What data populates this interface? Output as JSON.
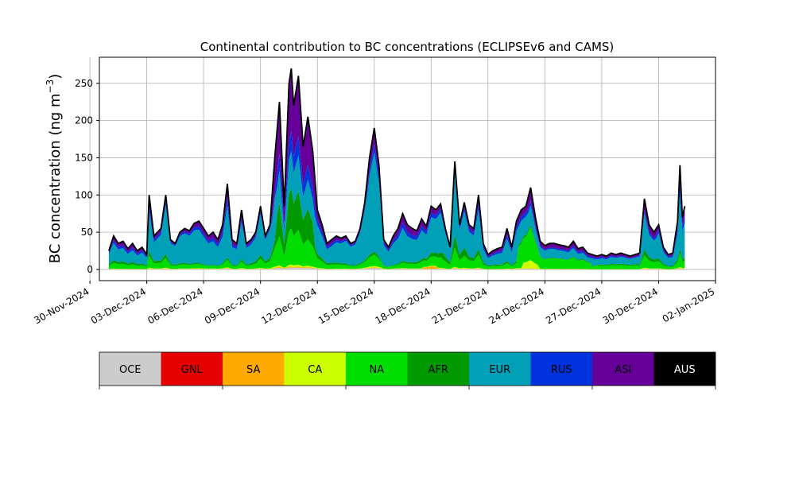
{
  "chart_data": {
    "type": "area",
    "title": "Continental contribution to BC concentrations (ECLIPSEv6 and CAMS)",
    "xlabel": "",
    "ylabel": "BC concentration (ng m",
    "ylabel_superscript": "−3",
    "ylabel_suffix": ")",
    "grid": true,
    "x_type": "date",
    "x_start": "2024-12-01",
    "xlim": [
      "2024-11-30T12:00",
      "2025-01-02T00:00"
    ],
    "ylim": [
      -15,
      285
    ],
    "x_ticks": [
      "2024-11-30",
      "2024-12-03",
      "2024-12-06",
      "2024-12-09",
      "2024-12-12",
      "2024-12-15",
      "2024-12-18",
      "2024-12-21",
      "2024-12-24",
      "2024-12-27",
      "2024-12-30",
      "2025-01-02"
    ],
    "x_tick_labels": [
      "30-Nov-2024",
      "03-Dec-2024",
      "06-Dec-2024",
      "09-Dec-2024",
      "12-Dec-2024",
      "15-Dec-2024",
      "18-Dec-2024",
      "21-Dec-2024",
      "24-Dec-2024",
      "27-Dec-2024",
      "30-Dec-2024",
      "02-Jan-2025"
    ],
    "y_ticks": [
      0,
      50,
      100,
      150,
      200,
      250
    ],
    "y_tick_labels": [
      "0",
      "50",
      "100",
      "150",
      "200",
      "250"
    ],
    "total_points": [
      [
        "2024-12-01T00:00",
        25
      ],
      [
        "2024-12-01T06:00",
        45
      ],
      [
        "2024-12-01T12:00",
        35
      ],
      [
        "2024-12-01T18:00",
        38
      ],
      [
        "2024-12-02T00:00",
        28
      ],
      [
        "2024-12-02T06:00",
        35
      ],
      [
        "2024-12-02T12:00",
        25
      ],
      [
        "2024-12-02T18:00",
        30
      ],
      [
        "2024-12-03T00:00",
        20
      ],
      [
        "2024-12-03T03:00",
        100
      ],
      [
        "2024-12-03T09:00",
        45
      ],
      [
        "2024-12-03T18:00",
        55
      ],
      [
        "2024-12-04T00:00",
        100
      ],
      [
        "2024-12-04T06:00",
        40
      ],
      [
        "2024-12-04T12:00",
        35
      ],
      [
        "2024-12-04T18:00",
        50
      ],
      [
        "2024-12-05T00:00",
        55
      ],
      [
        "2024-12-05T06:00",
        52
      ],
      [
        "2024-12-05T12:00",
        62
      ],
      [
        "2024-12-05T18:00",
        65
      ],
      [
        "2024-12-06T00:00",
        55
      ],
      [
        "2024-12-06T06:00",
        45
      ],
      [
        "2024-12-06T12:00",
        50
      ],
      [
        "2024-12-06T18:00",
        40
      ],
      [
        "2024-12-07T00:00",
        60
      ],
      [
        "2024-12-07T06:00",
        115
      ],
      [
        "2024-12-07T12:00",
        40
      ],
      [
        "2024-12-07T18:00",
        35
      ],
      [
        "2024-12-08T00:00",
        80
      ],
      [
        "2024-12-08T06:00",
        35
      ],
      [
        "2024-12-08T12:00",
        40
      ],
      [
        "2024-12-08T18:00",
        50
      ],
      [
        "2024-12-09T00:00",
        85
      ],
      [
        "2024-12-09T06:00",
        45
      ],
      [
        "2024-12-09T12:00",
        60
      ],
      [
        "2024-12-09T18:00",
        150
      ],
      [
        "2024-12-10T00:00",
        225
      ],
      [
        "2024-12-10T06:00",
        85
      ],
      [
        "2024-12-10T12:00",
        250
      ],
      [
        "2024-12-10T15:00",
        270
      ],
      [
        "2024-12-10T18:00",
        220
      ],
      [
        "2024-12-11T00:00",
        260
      ],
      [
        "2024-12-11T06:00",
        165
      ],
      [
        "2024-12-11T12:00",
        205
      ],
      [
        "2024-12-11T18:00",
        160
      ],
      [
        "2024-12-12T00:00",
        80
      ],
      [
        "2024-12-12T06:00",
        60
      ],
      [
        "2024-12-12T12:00",
        35
      ],
      [
        "2024-12-12T18:00",
        40
      ],
      [
        "2024-12-13T00:00",
        45
      ],
      [
        "2024-12-13T06:00",
        42
      ],
      [
        "2024-12-13T12:00",
        45
      ],
      [
        "2024-12-13T18:00",
        35
      ],
      [
        "2024-12-14T00:00",
        38
      ],
      [
        "2024-12-14T06:00",
        55
      ],
      [
        "2024-12-14T12:00",
        90
      ],
      [
        "2024-12-14T18:00",
        150
      ],
      [
        "2024-12-15T00:00",
        190
      ],
      [
        "2024-12-15T06:00",
        140
      ],
      [
        "2024-12-15T12:00",
        40
      ],
      [
        "2024-12-15T18:00",
        30
      ],
      [
        "2024-12-16T00:00",
        45
      ],
      [
        "2024-12-16T06:00",
        55
      ],
      [
        "2024-12-16T12:00",
        75
      ],
      [
        "2024-12-16T18:00",
        60
      ],
      [
        "2024-12-17T00:00",
        55
      ],
      [
        "2024-12-17T06:00",
        52
      ],
      [
        "2024-12-17T12:00",
        68
      ],
      [
        "2024-12-17T18:00",
        58
      ],
      [
        "2024-12-18T00:00",
        85
      ],
      [
        "2024-12-18T06:00",
        80
      ],
      [
        "2024-12-18T12:00",
        88
      ],
      [
        "2024-12-18T18:00",
        55
      ],
      [
        "2024-12-19T00:00",
        30
      ],
      [
        "2024-12-19T06:00",
        145
      ],
      [
        "2024-12-19T12:00",
        60
      ],
      [
        "2024-12-19T18:00",
        90
      ],
      [
        "2024-12-20T00:00",
        60
      ],
      [
        "2024-12-20T06:00",
        55
      ],
      [
        "2024-12-20T12:00",
        100
      ],
      [
        "2024-12-20T18:00",
        35
      ],
      [
        "2024-12-21T00:00",
        20
      ],
      [
        "2024-12-21T06:00",
        25
      ],
      [
        "2024-12-21T12:00",
        28
      ],
      [
        "2024-12-21T18:00",
        30
      ],
      [
        "2024-12-22T00:00",
        55
      ],
      [
        "2024-12-22T06:00",
        30
      ],
      [
        "2024-12-22T12:00",
        65
      ],
      [
        "2024-12-22T18:00",
        80
      ],
      [
        "2024-12-23T00:00",
        85
      ],
      [
        "2024-12-23T06:00",
        110
      ],
      [
        "2024-12-23T12:00",
        70
      ],
      [
        "2024-12-23T18:00",
        38
      ],
      [
        "2024-12-24T00:00",
        32
      ],
      [
        "2024-12-24T06:00",
        35
      ],
      [
        "2024-12-24T12:00",
        35
      ],
      [
        "2024-12-24T18:00",
        33
      ],
      [
        "2024-12-25T00:00",
        32
      ],
      [
        "2024-12-25T06:00",
        30
      ],
      [
        "2024-12-25T12:00",
        38
      ],
      [
        "2024-12-25T18:00",
        28
      ],
      [
        "2024-12-26T00:00",
        30
      ],
      [
        "2024-12-26T06:00",
        22
      ],
      [
        "2024-12-26T12:00",
        20
      ],
      [
        "2024-12-26T18:00",
        18
      ],
      [
        "2024-12-27T00:00",
        20
      ],
      [
        "2024-12-27T06:00",
        18
      ],
      [
        "2024-12-27T12:00",
        22
      ],
      [
        "2024-12-27T18:00",
        20
      ],
      [
        "2024-12-28T00:00",
        22
      ],
      [
        "2024-12-28T06:00",
        20
      ],
      [
        "2024-12-28T12:00",
        18
      ],
      [
        "2024-12-28T18:00",
        20
      ],
      [
        "2024-12-29T00:00",
        22
      ],
      [
        "2024-12-29T06:00",
        95
      ],
      [
        "2024-12-29T12:00",
        60
      ],
      [
        "2024-12-29T18:00",
        50
      ],
      [
        "2024-12-30T00:00",
        60
      ],
      [
        "2024-12-30T06:00",
        30
      ],
      [
        "2024-12-30T12:00",
        20
      ],
      [
        "2024-12-30T18:00",
        22
      ],
      [
        "2024-12-31T00:00",
        65
      ],
      [
        "2024-12-31T03:00",
        140
      ],
      [
        "2024-12-31T06:00",
        70
      ],
      [
        "2024-12-31T09:00",
        85
      ]
    ],
    "stack_order": [
      "OCE",
      "GNL",
      "SA",
      "CA",
      "NA",
      "AFR",
      "EUR",
      "RUS",
      "ASI",
      "AUS"
    ],
    "series": [
      {
        "name": "OCE",
        "color": "#cccccc"
      },
      {
        "name": "GNL",
        "color": "#e60000"
      },
      {
        "name": "SA",
        "color": "#ffaa00"
      },
      {
        "name": "CA",
        "color": "#ccff00"
      },
      {
        "name": "NA",
        "color": "#00dd00"
      },
      {
        "name": "AFR",
        "color": "#009900"
      },
      {
        "name": "EUR",
        "color": "#00a0b8"
      },
      {
        "name": "RUS",
        "color": "#0033dd"
      },
      {
        "name": "ASI",
        "color": "#660099"
      },
      {
        "name": "AUS",
        "color": "#000000"
      }
    ],
    "legend_placement": "below",
    "legend_items": [
      {
        "label": "OCE",
        "color": "#cccccc",
        "text_color": "#000000"
      },
      {
        "label": "GNL",
        "color": "#e60000",
        "text_color": "#000000"
      },
      {
        "label": "SA",
        "color": "#ffaa00",
        "text_color": "#000000"
      },
      {
        "label": "CA",
        "color": "#ccff00",
        "text_color": "#000000"
      },
      {
        "label": "NA",
        "color": "#00dd00",
        "text_color": "#000000"
      },
      {
        "label": "AFR",
        "color": "#009900",
        "text_color": "#000000"
      },
      {
        "label": "EUR",
        "color": "#00a0b8",
        "text_color": "#000000"
      },
      {
        "label": "RUS",
        "color": "#0033dd",
        "text_color": "#000000"
      },
      {
        "label": "ASI",
        "color": "#660099",
        "text_color": "#000000"
      },
      {
        "label": "AUS",
        "color": "#000000",
        "text_color": "#ffffff"
      }
    ]
  }
}
